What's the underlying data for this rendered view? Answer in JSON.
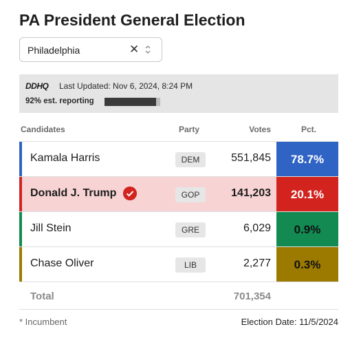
{
  "title": "PA President General Election",
  "location_select": {
    "value": "Philadelphia",
    "clear_icon": "close-icon",
    "toggle_icon": "chevron-up-down-icon"
  },
  "status": {
    "logo": "DDHQ",
    "last_updated": "Last Updated: Nov 6, 2024, 8:24 PM",
    "reporting": "92% est. reporting",
    "reporting_fraction": 0.92
  },
  "table": {
    "headers": {
      "candidates": "Candidates",
      "party": "Party",
      "votes": "Votes",
      "pct": "Pct."
    },
    "rows": [
      {
        "name": "Kamala Harris",
        "party": "DEM",
        "votes": "551,845",
        "pct": "78.7%",
        "stripe_color": "#2f63c4",
        "pct_bg": "#2f63c4",
        "pct_color": "#ffffff",
        "row_bg": "#ffffff",
        "bold": false,
        "winner": false
      },
      {
        "name": "Donald J. Trump",
        "party": "GOP",
        "votes": "141,203",
        "pct": "20.1%",
        "stripe_color": "#d2231f",
        "pct_bg": "#d2231f",
        "pct_color": "#ffffff",
        "row_bg": "#f7d3d3",
        "bold": true,
        "winner": true
      },
      {
        "name": "Jill Stein",
        "party": "GRE",
        "votes": "6,029",
        "pct": "0.9%",
        "stripe_color": "#128a52",
        "pct_bg": "#128a52",
        "pct_color": "#111111",
        "row_bg": "#ffffff",
        "bold": false,
        "winner": false
      },
      {
        "name": "Chase Oliver",
        "party": "LIB",
        "votes": "2,277",
        "pct": "0.3%",
        "stripe_color": "#9c7a00",
        "pct_bg": "#9c7a00",
        "pct_color": "#111111",
        "row_bg": "#ffffff",
        "bold": false,
        "winner": false
      }
    ],
    "total": {
      "label": "Total",
      "votes": "701,354"
    }
  },
  "footer": {
    "incumbent_note": "* Incumbent",
    "election_date": "Election Date: 11/5/2024"
  }
}
